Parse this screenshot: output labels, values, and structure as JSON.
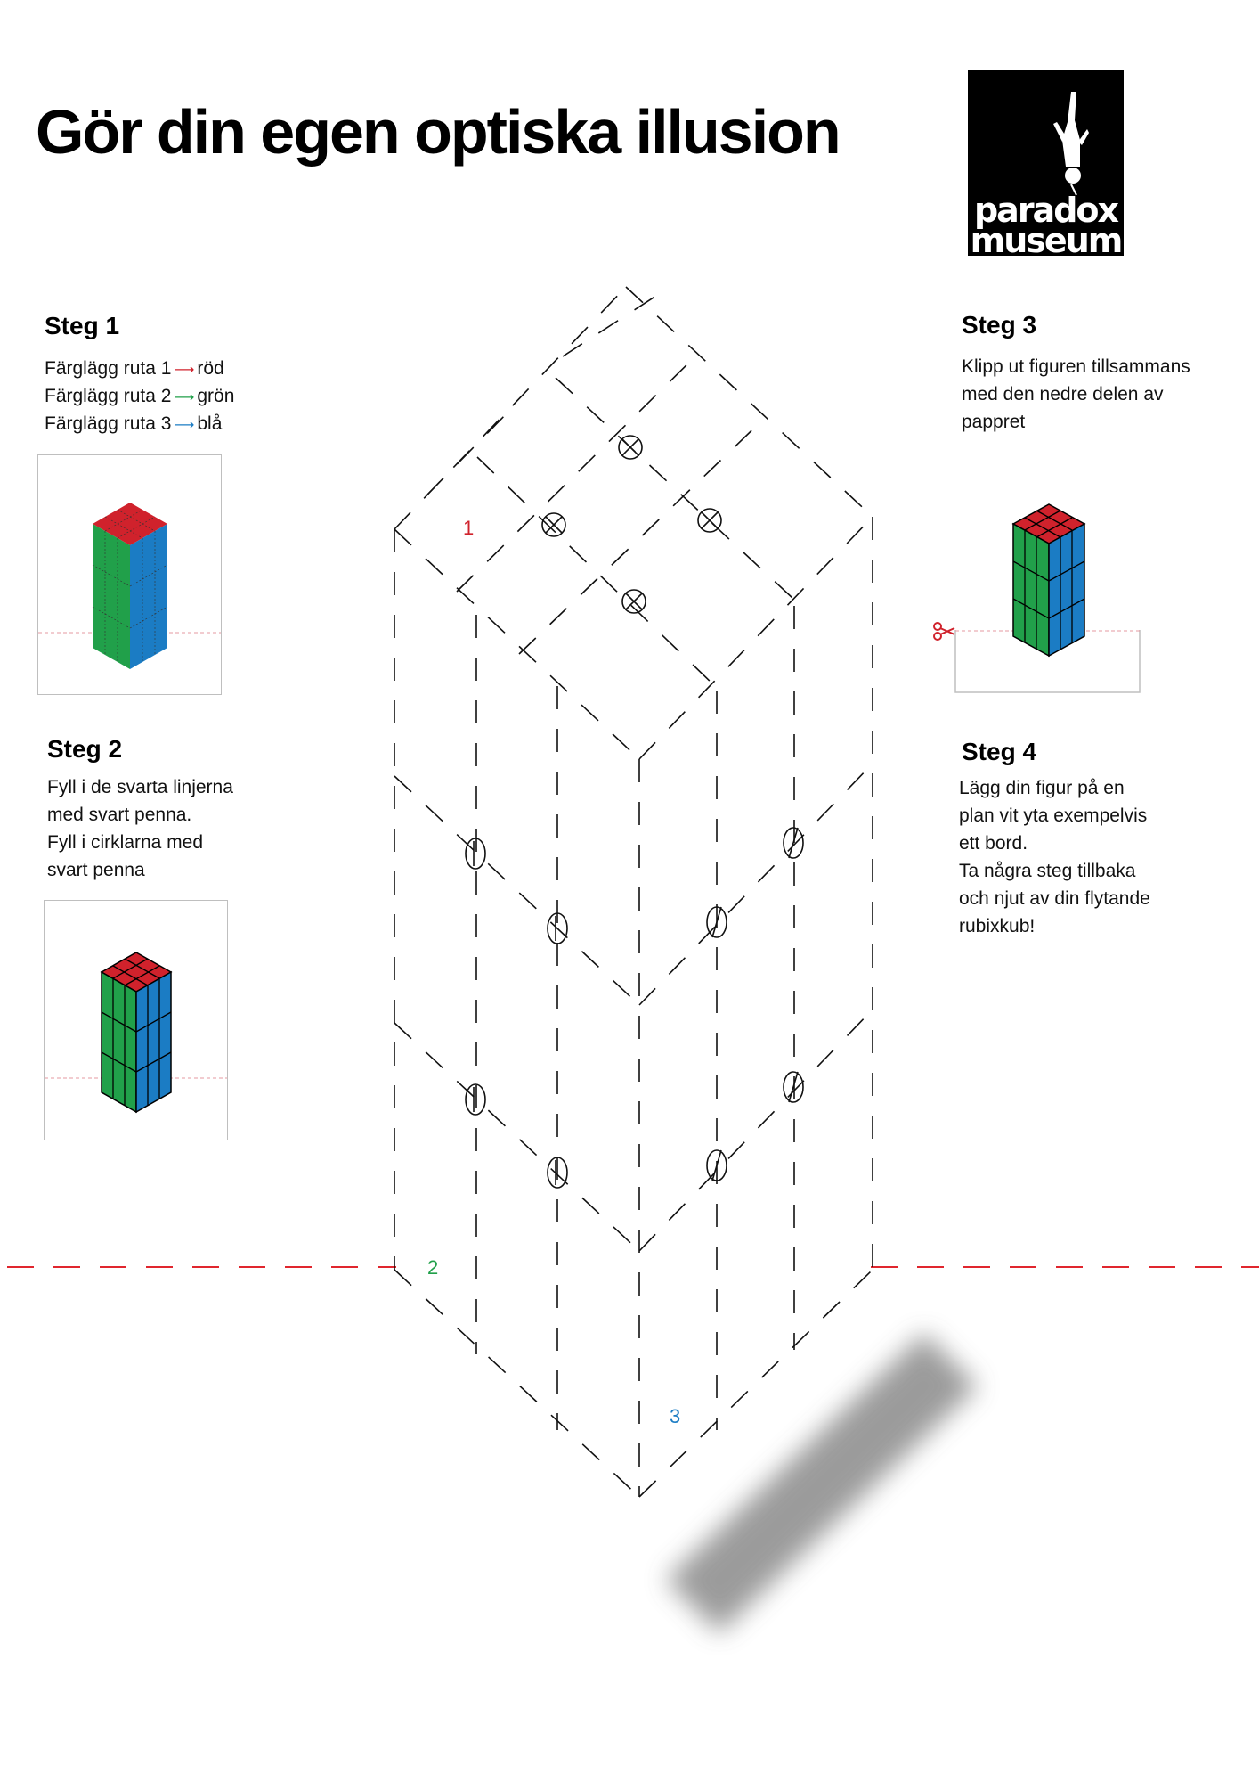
{
  "title": "Gör din egen optiska illusion",
  "logo": {
    "word1": "paradox",
    "word2": "museum"
  },
  "steps": [
    {
      "heading": "Steg 1",
      "lines": [
        {
          "text": "Färglägg ruta 1",
          "color_word": "röd",
          "arrow_color": "#d0222c"
        },
        {
          "text": "Färglägg ruta 2",
          "color_word": "grön",
          "arrow_color": "#21a04a"
        },
        {
          "text": "Färglägg ruta 3",
          "color_word": "blå",
          "arrow_color": "#1b7cc4"
        }
      ]
    },
    {
      "heading": "Steg 2",
      "lines": [
        "Fyll i de svarta linjerna",
        "med svart penna.",
        "Fyll i cirklarna med",
        "svart penna"
      ]
    },
    {
      "heading": "Steg 3",
      "lines": [
        "Klipp ut figuren tillsammans",
        "med den nedre delen av",
        "pappret"
      ]
    },
    {
      "heading": "Steg 4",
      "lines": [
        "Lägg din figur på en",
        "plan vit yta exempelvis",
        "ett bord.",
        "Ta några steg tillbaka",
        "och njut av din flytande",
        "rubixkub!"
      ]
    }
  ],
  "labels": {
    "face1": "1",
    "face2": "2",
    "face3": "3"
  },
  "colors": {
    "red": "#d0222c",
    "green": "#21a04a",
    "blue": "#1b7cc4",
    "cut_line": "#e0262e",
    "shadow": "#8a8a8a"
  }
}
